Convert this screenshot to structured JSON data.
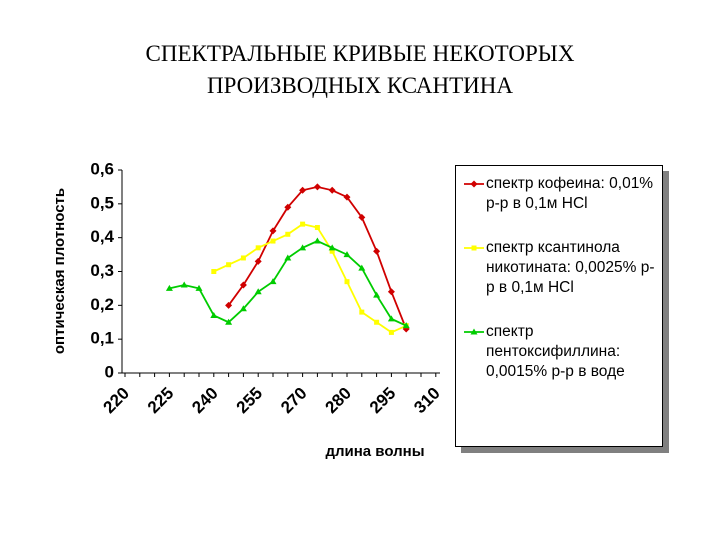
{
  "chart_data": {
    "type": "line",
    "title": "СПЕКТРАЛЬНЫЕ  КРИВЫЕ  НЕКОТОРЫХ\nПРОИЗВОДНЫХ  КСАНТИНА",
    "x_label": "длина волны",
    "y_label": "оптическая плотность",
    "categories": [
      "220",
      null,
      null,
      "225",
      null,
      null,
      "240",
      null,
      null,
      "255",
      null,
      null,
      "270",
      null,
      null,
      "280",
      null,
      null,
      "295",
      null,
      null,
      "310"
    ],
    "ylim": [
      0,
      0.6
    ],
    "yticks": [
      0,
      {
        "value": 0.1,
        "label": "0,1"
      },
      {
        "value": 0.2,
        "label": "0,2"
      },
      {
        "value": 0.3,
        "label": "0,3"
      },
      {
        "value": 0.4,
        "label": "0,4"
      },
      {
        "value": 0.5,
        "label": "0,5"
      },
      {
        "value": 0.6,
        "label": "0,6"
      }
    ],
    "series": [
      {
        "name": "спектр кофеина: 0,01% р-р в 0,1м HCl",
        "color": "#d00000",
        "values": [
          null,
          null,
          null,
          null,
          null,
          null,
          null,
          0.2,
          0.26,
          0.33,
          0.42,
          0.49,
          0.54,
          0.55,
          0.54,
          0.52,
          0.46,
          0.36,
          0.24,
          0.13,
          null,
          null
        ]
      },
      {
        "name": "спектр ксантинола никотината: 0,0025% р-р в 0,1м HCl",
        "color": "#ffff00",
        "values": [
          null,
          null,
          null,
          null,
          null,
          null,
          0.3,
          0.32,
          0.34,
          0.37,
          0.39,
          0.41,
          0.44,
          0.43,
          0.36,
          0.27,
          0.18,
          0.15,
          0.12,
          0.14,
          null,
          null
        ]
      },
      {
        "name": "спектр пентоксифиллина: 0,0015% р-р в воде",
        "color": "#00cc00",
        "values": [
          null,
          null,
          null,
          0.25,
          0.26,
          0.25,
          0.17,
          0.15,
          0.19,
          0.24,
          0.27,
          0.34,
          0.37,
          0.39,
          0.37,
          0.35,
          0.31,
          0.23,
          0.16,
          0.14,
          null,
          null
        ]
      }
    ]
  }
}
